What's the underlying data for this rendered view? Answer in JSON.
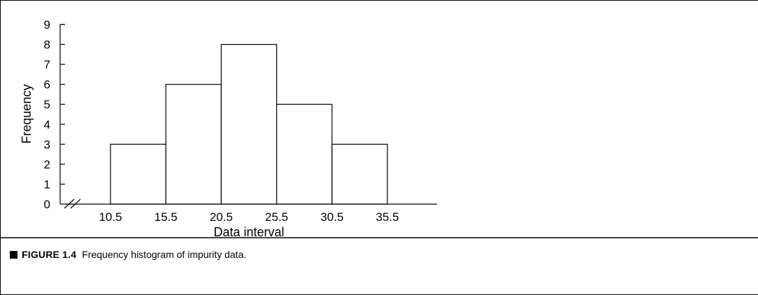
{
  "chart_data": {
    "type": "bar",
    "categories": [
      "10.5–15.5",
      "15.5–20.5",
      "20.5–25.5",
      "25.5–30.5",
      "30.5–35.5"
    ],
    "bin_edges": [
      10.5,
      15.5,
      20.5,
      25.5,
      30.5,
      35.5
    ],
    "values": [
      3,
      6,
      8,
      5,
      3
    ],
    "x_tick_labels": [
      "10.5",
      "15.5",
      "20.5",
      "25.5",
      "30.5",
      "35.5"
    ],
    "y_tick_labels": [
      "0",
      "1",
      "2",
      "3",
      "4",
      "5",
      "6",
      "7",
      "8",
      "9"
    ],
    "xlabel": "Data interval",
    "ylabel": "Frequency",
    "ylim": [
      0,
      9
    ],
    "axis_break": true,
    "grid": false,
    "bar_fill": "#ffffff",
    "bar_stroke": "#000000"
  },
  "caption": {
    "label": "FIGURE 1.4",
    "text": "Frequency histogram of impurity data."
  }
}
